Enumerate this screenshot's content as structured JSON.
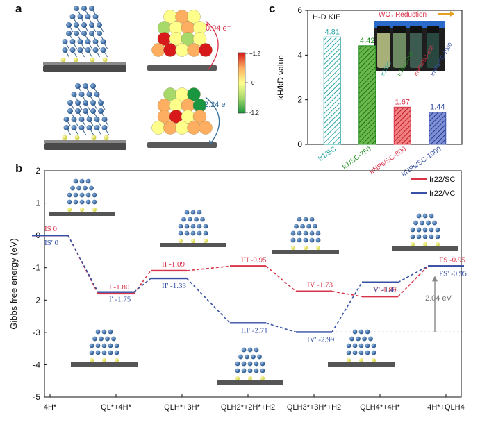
{
  "panels": {
    "a": {
      "letter": "a",
      "charge_top": "0.94 e⁻",
      "charge_bottom": "2.24 e⁻",
      "colorbar_max": "+1.2",
      "colorbar_mid": "0",
      "colorbar_min": "-1.2",
      "colorbar_colors": [
        "#d7191c",
        "#fdae61",
        "#ffff8c",
        "#a6d96a",
        "#1a9641"
      ]
    },
    "b": {
      "letter": "b"
    },
    "c": {
      "letter": "c",
      "photo_label": "WO₃ Reduction"
    }
  },
  "chart_data": [
    {
      "panel": "c",
      "type": "bar",
      "title": "H-D KIE",
      "ylabel": "kH/kD value",
      "ylim": [
        0,
        6
      ],
      "yticks": [
        0,
        2,
        4,
        6
      ],
      "categories": [
        "Ir1/SC",
        "Ir1/SC-750",
        "IrNPs/SC-800",
        "IrNPs/SC-1000"
      ],
      "values": [
        4.81,
        4.42,
        1.67,
        1.44
      ],
      "value_labels": [
        "4.81",
        "4.42",
        "1.67",
        "1.44"
      ],
      "colors": [
        "#2aa6a6",
        "#1e8c1e",
        "#d9344a",
        "#3550a6"
      ]
    },
    {
      "panel": "b",
      "type": "line",
      "ylabel": "Gibbs free energy (eV)",
      "ylim": [
        -5,
        2
      ],
      "yticks": [
        -5,
        -4,
        -3,
        -2,
        -1,
        0,
        1,
        2
      ],
      "categories": [
        "4H*",
        "QL*+4H*",
        "QLH*+3H*",
        "QLH2*+2H*+H2",
        "QLH3*+3H*+H2",
        "QLH4*+4H*",
        "4H*+QLH4"
      ],
      "legend": [
        "Ir22/SC",
        "Ir22/VC"
      ],
      "series": [
        {
          "name": "Ir22/SC",
          "color": "#d9344a",
          "steps": [
            0,
            1,
            1.8,
            3,
            4,
            5,
            6
          ],
          "values": [
            0,
            -1.8,
            -1.09,
            -0.95,
            -1.73,
            -1.89,
            -0.95
          ],
          "labels": [
            "IS  0",
            "I  -1.80",
            "II  -1.09",
            "III  -0.95",
            "IV  -1.73",
            "V  -1.89",
            "FS  -0.95"
          ]
        },
        {
          "name": "Ir22/VC",
          "color": "#3550a6",
          "steps": [
            0,
            1,
            1.8,
            3,
            4,
            5,
            6
          ],
          "values": [
            0,
            -1.75,
            -1.33,
            -2.71,
            -2.99,
            -1.45,
            -0.95
          ],
          "labels": [
            "IS'  0",
            "I'  -1.75",
            "II'  -1.33",
            "III'  -2.71",
            "IV'  -2.99",
            "V'  -1.45",
            "FS'  -0.95"
          ]
        }
      ],
      "annotation": "2.04 eV"
    }
  ]
}
